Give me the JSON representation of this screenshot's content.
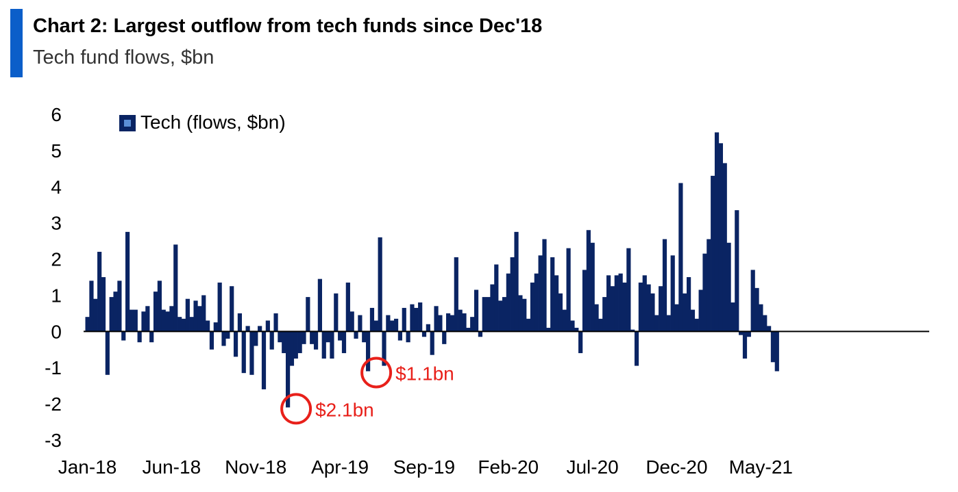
{
  "header": {
    "title": "Chart 2: Largest outflow from tech funds since Dec'18",
    "subtitle": "Tech fund flows, $bn",
    "accent_color": "#0b5ec9"
  },
  "chart_data": {
    "type": "bar",
    "title": "Chart 2: Largest outflow from tech funds since Dec'18",
    "subtitle": "Tech fund flows, $bn",
    "frequency": "weekly",
    "x_tick_labels": [
      "Jan-18",
      "Jun-18",
      "Nov-18",
      "Apr-19",
      "Sep-19",
      "Feb-20",
      "Jul-20",
      "Dec-20",
      "May-21"
    ],
    "y_ticks": [
      6,
      5,
      4,
      3,
      2,
      1,
      0,
      -1,
      -2,
      -3
    ],
    "ylim": [
      -3,
      6
    ],
    "legend": {
      "position": "top-left",
      "label": "Tech (flows, $bn)"
    },
    "grid": false,
    "bar_color": "#0a2463",
    "series": [
      {
        "name": "Tech (flows, $bn)",
        "values": [
          0.4,
          1.4,
          0.9,
          2.2,
          1.5,
          -1.2,
          0.95,
          1.1,
          1.4,
          -0.25,
          2.75,
          0.6,
          0.6,
          -0.3,
          0.55,
          0.7,
          -0.3,
          1.1,
          1.4,
          0.6,
          0.55,
          0.7,
          2.4,
          0.4,
          0.35,
          0.9,
          0.4,
          0.85,
          0.7,
          1.0,
          0.3,
          -0.5,
          0.25,
          1.35,
          -0.4,
          -0.2,
          1.25,
          -0.7,
          0.5,
          -1.15,
          0.15,
          -1.2,
          -0.4,
          0.15,
          -1.6,
          0.3,
          -0.5,
          0.5,
          -0.3,
          -0.6,
          -2.1,
          -0.95,
          -0.75,
          -0.6,
          -0.35,
          0.95,
          -0.35,
          -0.5,
          1.45,
          -0.75,
          -0.3,
          -0.75,
          1.05,
          -0.25,
          -0.6,
          1.35,
          0.55,
          -0.2,
          0.45,
          -0.3,
          -1.1,
          0.65,
          0.3,
          2.6,
          -0.95,
          0.45,
          0.3,
          0.35,
          -0.25,
          0.65,
          -0.3,
          0.75,
          0.65,
          0.8,
          -0.15,
          0.2,
          -0.65,
          0.7,
          0.45,
          -0.35,
          0.5,
          0.45,
          2.05,
          0.6,
          0.5,
          0.1,
          0.4,
          1.15,
          -0.15,
          0.95,
          0.95,
          1.3,
          1.85,
          0.85,
          0.95,
          1.6,
          2.05,
          2.75,
          1.0,
          0.9,
          0.35,
          1.35,
          1.6,
          2.1,
          2.55,
          0.1,
          2.05,
          1.55,
          1.05,
          0.6,
          2.3,
          0.3,
          0.1,
          -0.6,
          1.7,
          2.8,
          2.45,
          0.75,
          0.35,
          0.95,
          1.55,
          1.25,
          1.55,
          1.6,
          1.35,
          2.3,
          0.05,
          -0.95,
          1.35,
          1.55,
          1.3,
          1.05,
          0.45,
          1.25,
          2.55,
          0.45,
          2.1,
          0.75,
          4.1,
          1.05,
          1.5,
          0.6,
          0.35,
          1.15,
          2.15,
          2.55,
          4.3,
          5.5,
          5.2,
          4.65,
          2.45,
          0.8,
          3.35,
          -0.1,
          -0.75,
          -0.15,
          1.7,
          1.2,
          0.75,
          0.45,
          0.15,
          -0.85,
          -1.1
        ]
      }
    ],
    "annotations": [
      {
        "label": "$2.1bn",
        "value": -2.1,
        "color": "#e8201a"
      },
      {
        "label": "$1.1bn",
        "value": -1.1,
        "color": "#e8201a"
      }
    ]
  }
}
